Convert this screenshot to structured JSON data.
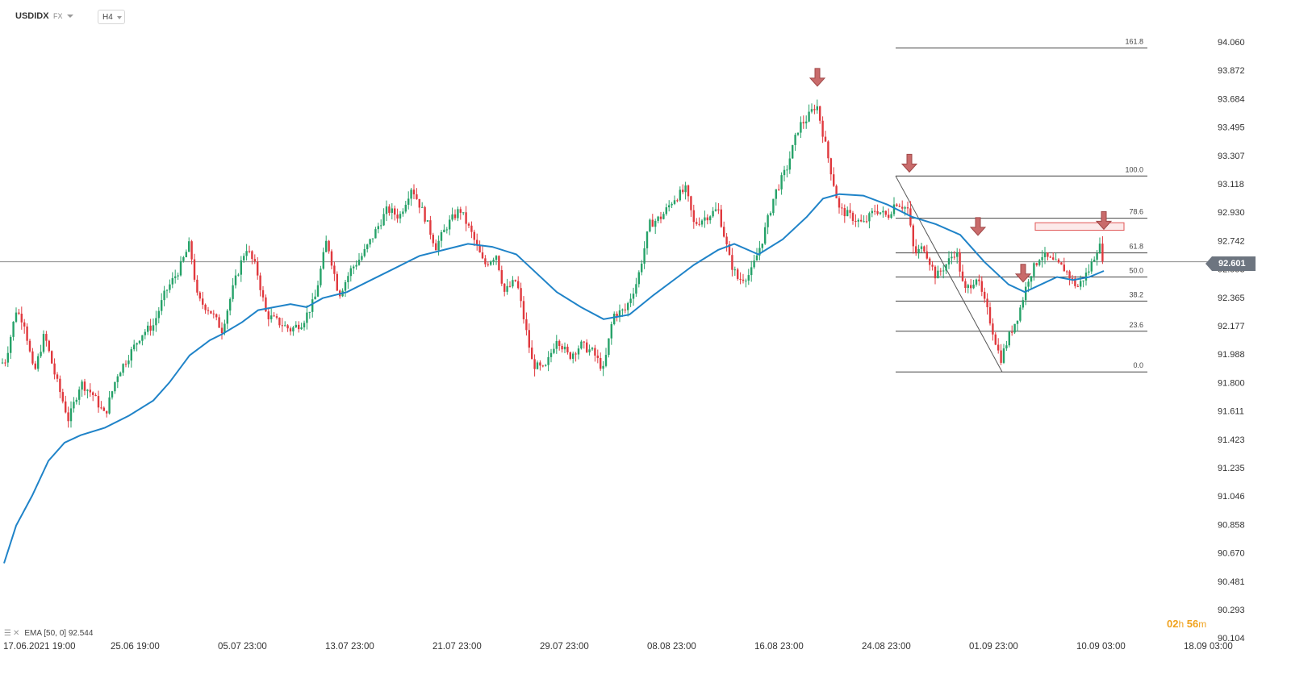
{
  "header": {
    "symbol": "USDIDX",
    "market": "FX",
    "timeframe": "H4"
  },
  "legend": {
    "ema_label": "EMA [50, 0] 92.544",
    "settings_icon": "settings-icon",
    "close_icon": "close-icon"
  },
  "timer": {
    "hours": "02",
    "h_unit": "h",
    "minutes": "56",
    "m_unit": "m"
  },
  "current_price": "92.601",
  "colors": {
    "up": "#26a269",
    "down": "#e0393e",
    "ema": "#1f83c8",
    "fib": "#444444",
    "marker": "#c96b6b"
  },
  "chart_data": {
    "type": "candlestick",
    "y_ticks": [
      "94.060",
      "93.872",
      "93.684",
      "93.495",
      "93.307",
      "93.118",
      "92.930",
      "92.742",
      "92.553",
      "92.365",
      "92.177",
      "91.988",
      "91.800",
      "91.611",
      "91.423",
      "91.235",
      "91.046",
      "90.858",
      "90.670",
      "90.481",
      "90.293",
      "90.104"
    ],
    "x_ticks": [
      "17.06.2021  19:00",
      "25.06  19:00",
      "05.07  23:00",
      "13.07  23:00",
      "21.07  23:00",
      "29.07  23:00",
      "08.08  23:00",
      "16.08  23:00",
      "24.08  23:00",
      "01.09  23:00",
      "10.09  03:00",
      "18.09  03:00"
    ],
    "price_line": 92.601,
    "path": [
      [
        0,
        91.92
      ],
      [
        7,
        91.95
      ],
      [
        20,
        92.28
      ],
      [
        30,
        92.2
      ],
      [
        42,
        91.85
      ],
      [
        55,
        92.12
      ],
      [
        68,
        91.85
      ],
      [
        85,
        91.55
      ],
      [
        100,
        91.8
      ],
      [
        115,
        91.72
      ],
      [
        130,
        91.58
      ],
      [
        145,
        91.85
      ],
      [
        160,
        91.98
      ],
      [
        175,
        92.12
      ],
      [
        190,
        92.18
      ],
      [
        205,
        92.4
      ],
      [
        222,
        92.55
      ],
      [
        235,
        92.72
      ],
      [
        245,
        92.35
      ],
      [
        260,
        92.28
      ],
      [
        275,
        92.15
      ],
      [
        290,
        92.45
      ],
      [
        305,
        92.7
      ],
      [
        318,
        92.55
      ],
      [
        330,
        92.25
      ],
      [
        345,
        92.2
      ],
      [
        360,
        92.15
      ],
      [
        375,
        92.2
      ],
      [
        390,
        92.35
      ],
      [
        405,
        92.75
      ],
      [
        420,
        92.38
      ],
      [
        435,
        92.55
      ],
      [
        450,
        92.65
      ],
      [
        465,
        92.8
      ],
      [
        480,
        92.95
      ],
      [
        495,
        92.9
      ],
      [
        510,
        93.1
      ],
      [
        525,
        92.92
      ],
      [
        540,
        92.7
      ],
      [
        555,
        92.85
      ],
      [
        570,
        92.95
      ],
      [
        585,
        92.78
      ],
      [
        600,
        92.58
      ],
      [
        615,
        92.65
      ],
      [
        625,
        92.4
      ],
      [
        640,
        92.48
      ],
      [
        650,
        92.2
      ],
      [
        660,
        91.92
      ],
      [
        675,
        91.88
      ],
      [
        690,
        92.1
      ],
      [
        705,
        91.97
      ],
      [
        720,
        92.05
      ],
      [
        735,
        92.0
      ],
      [
        748,
        91.88
      ],
      [
        760,
        92.25
      ],
      [
        775,
        92.28
      ],
      [
        790,
        92.48
      ],
      [
        805,
        92.85
      ],
      [
        820,
        92.9
      ],
      [
        835,
        93.02
      ],
      [
        850,
        93.08
      ],
      [
        860,
        92.85
      ],
      [
        875,
        92.9
      ],
      [
        890,
        92.95
      ],
      [
        905,
        92.6
      ],
      [
        915,
        92.48
      ],
      [
        930,
        92.52
      ],
      [
        945,
        92.75
      ],
      [
        960,
        93.05
      ],
      [
        975,
        93.22
      ],
      [
        990,
        93.5
      ],
      [
        1000,
        93.55
      ],
      [
        1012,
        93.65
      ],
      [
        1020,
        93.45
      ],
      [
        1030,
        93.2
      ],
      [
        1040,
        92.95
      ],
      [
        1055,
        92.9
      ],
      [
        1070,
        92.85
      ],
      [
        1085,
        92.95
      ],
      [
        1100,
        92.9
      ],
      [
        1110,
        93.0
      ],
      [
        1125,
        92.95
      ],
      [
        1133,
        92.65
      ],
      [
        1145,
        92.7
      ],
      [
        1160,
        92.5
      ],
      [
        1175,
        92.6
      ],
      [
        1185,
        92.68
      ],
      [
        1195,
        92.4
      ],
      [
        1210,
        92.5
      ],
      [
        1225,
        92.25
      ],
      [
        1240,
        91.95
      ],
      [
        1250,
        92.1
      ],
      [
        1262,
        92.25
      ],
      [
        1275,
        92.5
      ],
      [
        1290,
        92.65
      ],
      [
        1305,
        92.6
      ],
      [
        1320,
        92.55
      ],
      [
        1335,
        92.43
      ],
      [
        1350,
        92.55
      ],
      [
        1362,
        92.72
      ],
      [
        1368,
        92.6
      ]
    ],
    "ema": [
      [
        5,
        90.6
      ],
      [
        20,
        90.85
      ],
      [
        40,
        91.05
      ],
      [
        60,
        91.28
      ],
      [
        80,
        91.4
      ],
      [
        100,
        91.45
      ],
      [
        130,
        91.5
      ],
      [
        160,
        91.58
      ],
      [
        190,
        91.68
      ],
      [
        210,
        91.8
      ],
      [
        235,
        91.98
      ],
      [
        260,
        92.08
      ],
      [
        275,
        92.12
      ],
      [
        300,
        92.2
      ],
      [
        320,
        92.28
      ],
      [
        340,
        92.3
      ],
      [
        360,
        92.32
      ],
      [
        380,
        92.3
      ],
      [
        400,
        92.36
      ],
      [
        430,
        92.4
      ],
      [
        460,
        92.48
      ],
      [
        490,
        92.56
      ],
      [
        520,
        92.64
      ],
      [
        550,
        92.68
      ],
      [
        580,
        92.72
      ],
      [
        610,
        92.7
      ],
      [
        640,
        92.65
      ],
      [
        660,
        92.55
      ],
      [
        690,
        92.4
      ],
      [
        720,
        92.3
      ],
      [
        748,
        92.22
      ],
      [
        780,
        92.25
      ],
      [
        810,
        92.38
      ],
      [
        840,
        92.5
      ],
      [
        860,
        92.58
      ],
      [
        890,
        92.68
      ],
      [
        910,
        92.72
      ],
      [
        940,
        92.65
      ],
      [
        970,
        92.75
      ],
      [
        1000,
        92.9
      ],
      [
        1020,
        93.02
      ],
      [
        1040,
        93.05
      ],
      [
        1070,
        93.04
      ],
      [
        1100,
        92.98
      ],
      [
        1130,
        92.9
      ],
      [
        1160,
        92.85
      ],
      [
        1190,
        92.78
      ],
      [
        1220,
        92.6
      ],
      [
        1250,
        92.45
      ],
      [
        1270,
        92.4
      ],
      [
        1290,
        92.45
      ],
      [
        1310,
        92.5
      ],
      [
        1330,
        92.48
      ],
      [
        1350,
        92.5
      ],
      [
        1368,
        92.54
      ]
    ],
    "fibonacci": {
      "levels": [
        {
          "label": "161.8",
          "value": 94.02
        },
        {
          "label": "100.0",
          "value": 93.17
        },
        {
          "label": "78.6",
          "value": 92.89
        },
        {
          "label": "61.8",
          "value": 92.66
        },
        {
          "label": "50.0",
          "value": 92.5
        },
        {
          "label": "38.2",
          "value": 92.34
        },
        {
          "label": "23.6",
          "value": 92.14
        },
        {
          "label": "0.0",
          "value": 91.87
        }
      ]
    },
    "trend_line": [
      [
        1110,
        93.17
      ],
      [
        1242,
        91.87
      ]
    ],
    "resistance_zone": {
      "x0": 1283,
      "x1": 1393,
      "top": 92.86,
      "bottom": 92.81
    },
    "markers": [
      [
        1013,
        93.82
      ],
      [
        1127,
        93.25
      ],
      [
        1212,
        92.83
      ],
      [
        1268,
        92.52
      ],
      [
        1368,
        92.87
      ]
    ]
  }
}
